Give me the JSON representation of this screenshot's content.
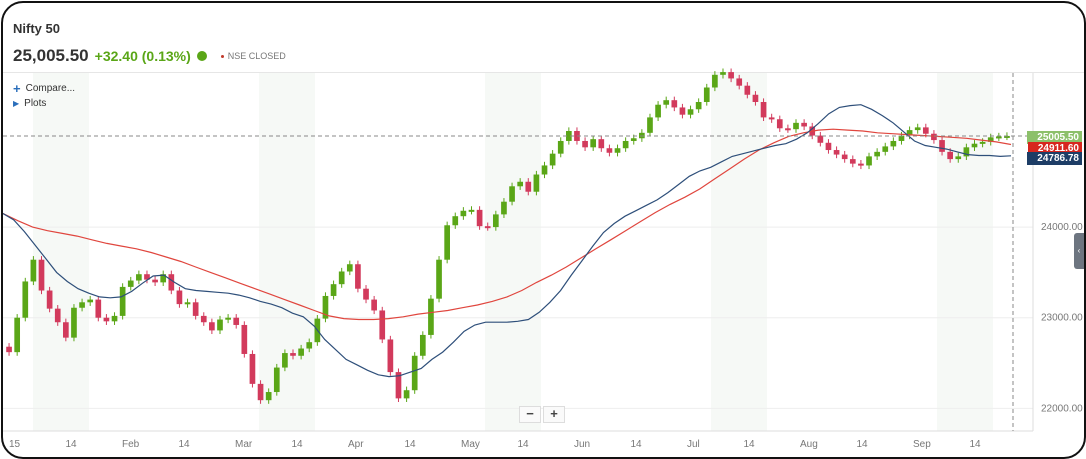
{
  "header": {
    "title": "Nifty 50",
    "price": "25,005.50",
    "change": "+32.40 (0.13%)",
    "status": "NSE CLOSED"
  },
  "toolbar": {
    "compare_label": "Compare...",
    "plots_label": "Plots"
  },
  "zoom": {
    "minus": "−",
    "plus": "+"
  },
  "tags": {
    "last": "25005.50",
    "ma_red": "24911.60",
    "ma_blue": "24786.78"
  },
  "colors": {
    "up": "#5aa617",
    "down": "#d23a5c",
    "ma_fast": "#2e4f7a",
    "ma_slow": "#e0463e",
    "last_tag": "#8cc06a",
    "red_tag": "#d7261e",
    "blue_tag": "#1d3d66"
  },
  "chart_data": {
    "type": "candlestick",
    "ylim": [
      21750,
      25700
    ],
    "y_ticks": [
      "22000.00",
      "23000.00",
      "24000.00"
    ],
    "x_ticks": [
      "15",
      "14",
      "Feb",
      "14",
      "Mar",
      "14",
      "Apr",
      "14",
      "May",
      "14",
      "Jun",
      "14",
      "Jul",
      "14",
      "Aug",
      "14",
      "Sep",
      "14"
    ],
    "close": [
      22620,
      23000,
      23400,
      23640,
      23300,
      23100,
      22950,
      22780,
      23110,
      23170,
      23200,
      23000,
      22960,
      23020,
      23340,
      23410,
      23480,
      23420,
      23390,
      23480,
      23300,
      23150,
      23170,
      23020,
      22950,
      22860,
      22980,
      23000,
      22920,
      22600,
      22270,
      22090,
      22180,
      22450,
      22610,
      22580,
      22660,
      22730,
      22990,
      23240,
      23370,
      23510,
      23590,
      23320,
      23200,
      23080,
      22760,
      22400,
      22110,
      22200,
      22580,
      22810,
      23210,
      23640,
      24020,
      24120,
      24180,
      24190,
      24010,
      24000,
      24140,
      24280,
      24450,
      24500,
      24390,
      24580,
      24680,
      24810,
      24950,
      25060,
      24950,
      24880,
      24970,
      24870,
      24820,
      24870,
      24950,
      24980,
      25040,
      25210,
      25350,
      25400,
      25320,
      25240,
      25300,
      25380,
      25540,
      25680,
      25710,
      25640,
      25560,
      25460,
      25380,
      25210,
      25190,
      25090,
      25080,
      25150,
      25110,
      25010,
      24930,
      24850,
      24800,
      24750,
      24700,
      24680,
      24780,
      24830,
      24890,
      24950,
      25010,
      25070,
      25100,
      25030,
      24960,
      24830,
      24750,
      24780,
      24880,
      24920,
      24940,
      24990,
      25000,
      25005.5
    ],
    "ma_fast": [
      24150,
      24080,
      23950,
      23800,
      23650,
      23500,
      23400,
      23320,
      23270,
      23230,
      23220,
      23230,
      23290,
      23380,
      23460,
      23470,
      23390,
      23320,
      23300,
      23290,
      23280,
      23270,
      23250,
      23220,
      23180,
      23150,
      23110,
      23050,
      23010,
      22910,
      22760,
      22650,
      22540,
      22480,
      22420,
      22370,
      22350,
      22360,
      22400,
      22440,
      22540,
      22620,
      22730,
      22850,
      22920,
      22950,
      22950,
      22950,
      22960,
      22980,
      23060,
      23170,
      23300,
      23470,
      23630,
      23790,
      23940,
      24040,
      24120,
      24180,
      24240,
      24300,
      24380,
      24470,
      24560,
      24620,
      24660,
      24720,
      24780,
      24810,
      24840,
      24870,
      24900,
      24920,
      24970,
      25040,
      25140,
      25250,
      25320,
      25340,
      25350,
      25300,
      25230,
      25150,
      25050,
      24950,
      24900,
      24880,
      24860,
      24830,
      24800,
      24790,
      24790,
      24780,
      24786.78
    ],
    "ma_slow": [
      24150,
      24070,
      24000,
      23960,
      23930,
      23900,
      23860,
      23820,
      23790,
      23760,
      23720,
      23670,
      23620,
      23560,
      23500,
      23440,
      23380,
      23320,
      23260,
      23200,
      23140,
      23080,
      23020,
      22990,
      22980,
      22980,
      22990,
      23010,
      23040,
      23060,
      23080,
      23110,
      23140,
      23180,
      23230,
      23300,
      23390,
      23470,
      23560,
      23660,
      23760,
      23860,
      23960,
      24060,
      24160,
      24250,
      24330,
      24420,
      24530,
      24640,
      24750,
      24850,
      24930,
      25000,
      25040,
      25070,
      25080,
      25070,
      25060,
      25040,
      25030,
      25020,
      25010,
      25000,
      24990,
      24980,
      24960,
      24940,
      24911.6
    ]
  }
}
